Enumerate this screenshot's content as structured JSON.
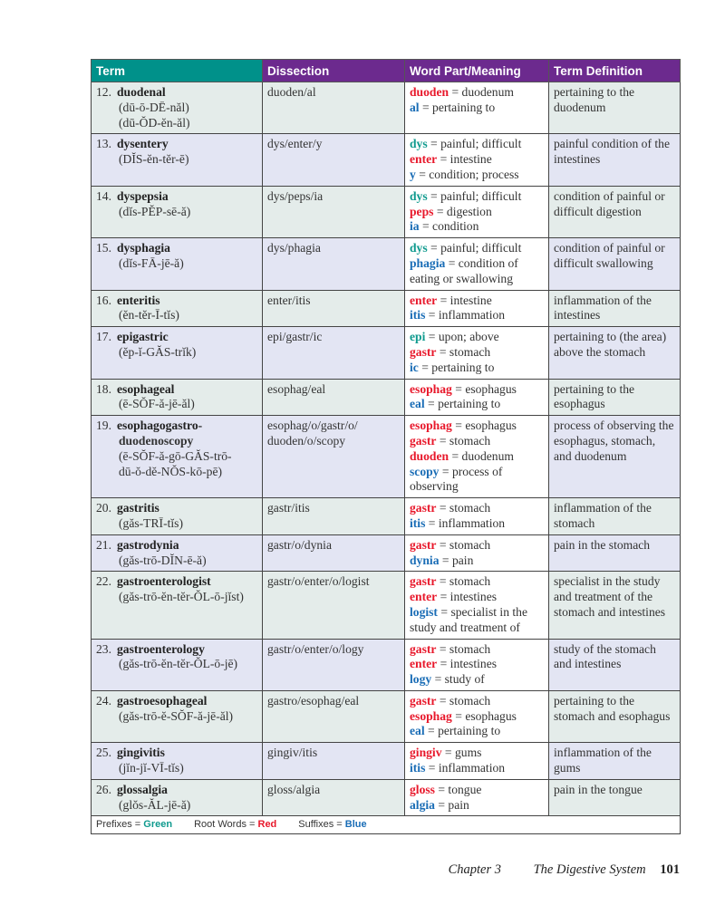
{
  "headers": [
    "Term",
    "Dissection",
    "Word Part/Meaning",
    "Term Definition"
  ],
  "colors": {
    "term_header": "#00918a",
    "header": "#6c2a8e",
    "prefix": "#0f9a8e",
    "root": "#e8182b",
    "suffix": "#1a6db6"
  },
  "rows": [
    {
      "num": "12.",
      "term": [
        "duodenal"
      ],
      "pron": [
        "(dū-ō-DĒ-năl)",
        "(dū-ŎD-ĕn-ăl)"
      ],
      "dissection": "duoden/al",
      "parts": [
        {
          "part": "duoden",
          "type": "root",
          "meaning": "duodenum"
        },
        {
          "part": "al",
          "type": "suffix",
          "meaning": "pertaining to"
        }
      ],
      "definition": "pertaining to the duodenum"
    },
    {
      "num": "13.",
      "term": [
        "dysentery"
      ],
      "pron": [
        "(DĬS-ĕn-tĕr-ē)"
      ],
      "dissection": "dys/enter/y",
      "parts": [
        {
          "part": "dys",
          "type": "prefix",
          "meaning": "painful; difficult"
        },
        {
          "part": "enter",
          "type": "root",
          "meaning": "intestine"
        },
        {
          "part": "y",
          "type": "suffix",
          "meaning": "condition; process"
        }
      ],
      "definition": "painful condition of the intestines"
    },
    {
      "num": "14.",
      "term": [
        "dyspepsia"
      ],
      "pron": [
        "(dĭs-PĔP-sē-ă)"
      ],
      "dissection": "dys/peps/ia",
      "parts": [
        {
          "part": "dys",
          "type": "prefix",
          "meaning": "painful; difficult"
        },
        {
          "part": "peps",
          "type": "root",
          "meaning": "digestion"
        },
        {
          "part": "ia",
          "type": "suffix",
          "meaning": "condition"
        }
      ],
      "definition": "condition of painful or difficult digestion"
    },
    {
      "num": "15.",
      "term": [
        "dysphagia"
      ],
      "pron": [
        "(dĭs-FĀ-jē-ă)"
      ],
      "dissection": "dys/phagia",
      "parts": [
        {
          "part": "dys",
          "type": "prefix",
          "meaning": "painful; difficult"
        },
        {
          "part": "phagia",
          "type": "suffix",
          "meaning": "condition of eating or swallowing"
        }
      ],
      "definition": "condition of painful or difficult swallowing"
    },
    {
      "num": "16.",
      "term": [
        "enteritis"
      ],
      "pron": [
        "(ĕn-tĕr-Ī-tĭs)"
      ],
      "dissection": "enter/itis",
      "parts": [
        {
          "part": "enter",
          "type": "root",
          "meaning": "intestine"
        },
        {
          "part": "itis",
          "type": "suffix",
          "meaning": "inflammation"
        }
      ],
      "definition": "inflammation of the intestines"
    },
    {
      "num": "17.",
      "term": [
        "epigastric"
      ],
      "pron": [
        "(ĕp-ĭ-GĂS-trĭk)"
      ],
      "dissection": "epi/gastr/ic",
      "parts": [
        {
          "part": "epi",
          "type": "prefix",
          "meaning": "upon; above"
        },
        {
          "part": "gastr",
          "type": "root",
          "meaning": "stomach"
        },
        {
          "part": "ic",
          "type": "suffix",
          "meaning": "pertaining to"
        }
      ],
      "definition": "pertaining to (the area) above the stomach"
    },
    {
      "num": "18.",
      "term": [
        "esophageal"
      ],
      "pron": [
        "(ē-SŎF-ă-jē-ăl)"
      ],
      "dissection": "esophag/eal",
      "parts": [
        {
          "part": "esophag",
          "type": "root",
          "meaning": "esophagus"
        },
        {
          "part": "eal",
          "type": "suffix",
          "meaning": "pertaining to"
        }
      ],
      "definition": "pertaining to the esophagus"
    },
    {
      "num": "19.",
      "term": [
        "esophagogastro-",
        "duodenoscopy"
      ],
      "pron": [
        "(ē-SŎF-ă-gō-GĂS-trō-",
        "dū-ŏ-dĕ-NŎS-kō-pē)"
      ],
      "dissection": "esophag/o/gastr/o/ duoden/o/scopy",
      "parts": [
        {
          "part": "esophag",
          "type": "root",
          "meaning": "esophagus"
        },
        {
          "part": "gastr",
          "type": "root",
          "meaning": "stomach"
        },
        {
          "part": "duoden",
          "type": "root",
          "meaning": "duodenum"
        },
        {
          "part": "scopy",
          "type": "suffix",
          "meaning": "process of observing"
        }
      ],
      "definition": "process of observing the esophagus, stomach, and duodenum"
    },
    {
      "num": "20.",
      "term": [
        "gastritis"
      ],
      "pron": [
        "(găs-TRĪ-tĭs)"
      ],
      "dissection": "gastr/itis",
      "parts": [
        {
          "part": "gastr",
          "type": "root",
          "meaning": "stomach"
        },
        {
          "part": "itis",
          "type": "suffix",
          "meaning": "inflammation"
        }
      ],
      "definition": "inflammation of the stomach"
    },
    {
      "num": "21.",
      "term": [
        "gastrodynia"
      ],
      "pron": [
        "(găs-trō-DĬN-ē-ă)"
      ],
      "dissection": "gastr/o/dynia",
      "parts": [
        {
          "part": "gastr",
          "type": "root",
          "meaning": "stomach"
        },
        {
          "part": "dynia",
          "type": "suffix",
          "meaning": "pain"
        }
      ],
      "definition": "pain in the stomach"
    },
    {
      "num": "22.",
      "term": [
        "gastroenterologist"
      ],
      "pron": [
        "(găs-trō-ĕn-tĕr-ŎL-ō-jĭst)"
      ],
      "dissection": "gastr/o/enter/o/logist",
      "parts": [
        {
          "part": "gastr",
          "type": "root",
          "meaning": "stomach"
        },
        {
          "part": "enter",
          "type": "root",
          "meaning": "intestines"
        },
        {
          "part": "logist",
          "type": "suffix",
          "meaning": "specialist in the study and treatment of"
        }
      ],
      "definition": "specialist in the study and treatment of the stomach and intestines"
    },
    {
      "num": "23.",
      "term": [
        "gastroenterology"
      ],
      "pron": [
        "(găs-trō-ĕn-tĕr-ŎL-ō-jē)"
      ],
      "dissection": "gastr/o/enter/o/logy",
      "parts": [
        {
          "part": "gastr",
          "type": "root",
          "meaning": "stomach"
        },
        {
          "part": "enter",
          "type": "root",
          "meaning": "intestines"
        },
        {
          "part": "logy",
          "type": "suffix",
          "meaning": "study of"
        }
      ],
      "definition": "study of the stomach and intestines"
    },
    {
      "num": "24.",
      "term": [
        "gastroesophageal"
      ],
      "pron": [
        "(găs-trō-ĕ-SŎF-ă-jē-ăl)"
      ],
      "dissection": "gastro/esophag/eal",
      "parts": [
        {
          "part": "gastr",
          "type": "root",
          "meaning": "stomach"
        },
        {
          "part": "esophag",
          "type": "root",
          "meaning": "esophagus"
        },
        {
          "part": "eal",
          "type": "suffix",
          "meaning": "pertaining to"
        }
      ],
      "definition": "pertaining to the stomach and esophagus"
    },
    {
      "num": "25.",
      "term": [
        "gingivitis"
      ],
      "pron": [
        "(jĭn-jĭ-VĪ-tĭs)"
      ],
      "dissection": "gingiv/itis",
      "parts": [
        {
          "part": "gingiv",
          "type": "root",
          "meaning": "gums"
        },
        {
          "part": "itis",
          "type": "suffix",
          "meaning": "inflammation"
        }
      ],
      "definition": "inflammation of the gums"
    },
    {
      "num": "26.",
      "term": [
        "glossalgia"
      ],
      "pron": [
        "(glŏs-ĂL-jē-ă)"
      ],
      "dissection": "gloss/algia",
      "parts": [
        {
          "part": "gloss",
          "type": "root",
          "meaning": "tongue"
        },
        {
          "part": "algia",
          "type": "suffix",
          "meaning": "pain"
        }
      ],
      "definition": "pain in the tongue"
    }
  ],
  "legend": [
    {
      "label": "Prefixes =",
      "value": "Green",
      "type": "prefix"
    },
    {
      "label": "Root Words =",
      "value": "Red",
      "type": "root"
    },
    {
      "label": "Suffixes =",
      "value": "Blue",
      "type": "suffix"
    }
  ],
  "footer": {
    "chapter": "Chapter 3",
    "title": "The Digestive System",
    "page": "101"
  }
}
